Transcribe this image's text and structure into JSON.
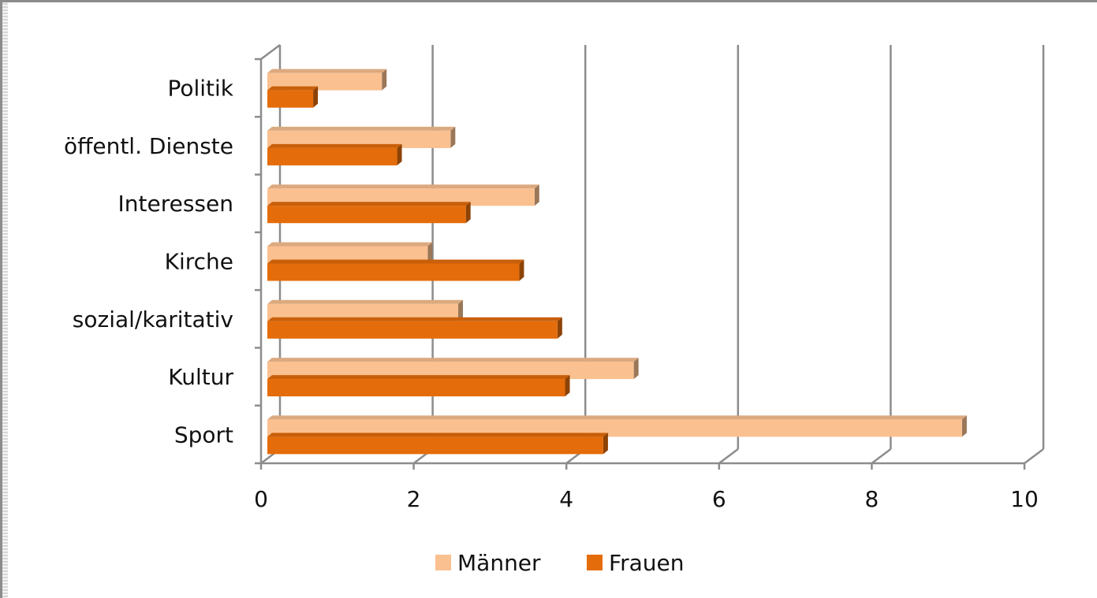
{
  "chart_data": {
    "type": "bar",
    "orientation": "horizontal",
    "style": "3d",
    "categories": [
      "Politik",
      "öffentl. Dienste",
      "Interessen",
      "Kirche",
      "sozial/karitativ",
      "Kultur",
      "Sport"
    ],
    "series": [
      {
        "name": "Männer",
        "color": "#fac090",
        "values": [
          1.5,
          2.4,
          3.5,
          2.1,
          2.5,
          4.8,
          9.1
        ]
      },
      {
        "name": "Frauen",
        "color": "#e46c0a",
        "values": [
          0.6,
          1.7,
          2.6,
          3.3,
          3.8,
          3.9,
          4.4
        ]
      }
    ],
    "xlim": [
      0,
      10
    ],
    "xticks": [
      "0",
      "2",
      "4",
      "6",
      "8",
      "10"
    ],
    "grid": true,
    "legend_position": "bottom",
    "title": "",
    "xlabel": "",
    "ylabel": ""
  }
}
